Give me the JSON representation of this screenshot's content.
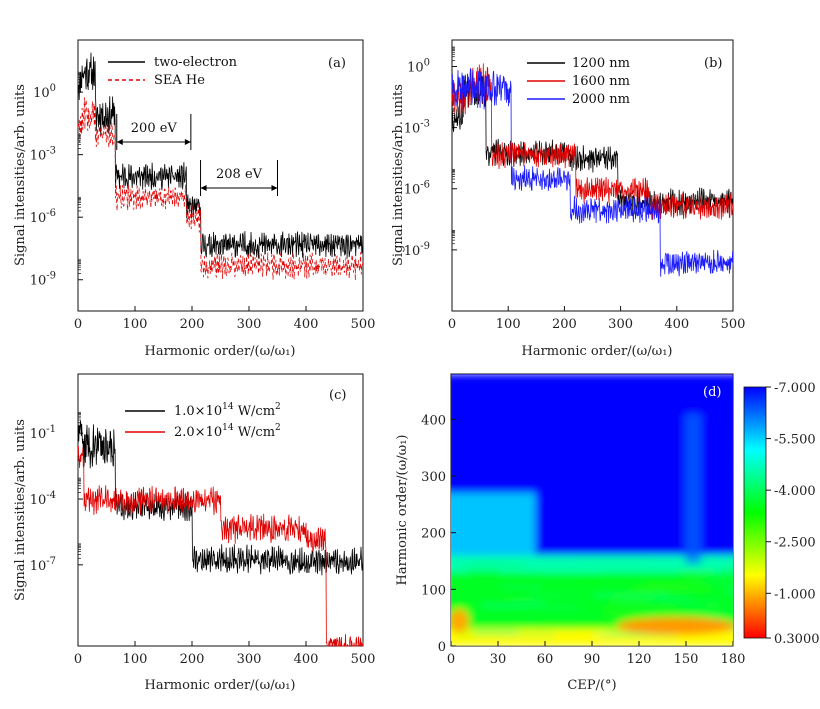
{
  "chart_data": [
    {
      "id": "a",
      "type": "line",
      "panel_label": "(a)",
      "xlabel": "Harmonic order/(ω/ω₁)",
      "ylabel": "Signal intensities/arb. units",
      "xlim": [
        0,
        500
      ],
      "ylim_log10": [
        -10.5,
        2.5
      ],
      "xticks": [
        "0",
        "100",
        "200",
        "300",
        "400",
        "500"
      ],
      "yticks": [
        {
          "label": "10",
          "exp": "0",
          "value": 0
        },
        {
          "label": "10",
          "exp": "-3",
          "value": -3
        },
        {
          "label": "10",
          "exp": "-6",
          "value": -6
        },
        {
          "label": "10",
          "exp": "-9",
          "value": -9
        }
      ],
      "series": [
        {
          "name": "two-electron",
          "color": "#000000",
          "style": "solid",
          "segments": [
            [
              0,
              5,
              0.5
            ],
            [
              5,
              30,
              1.0
            ],
            [
              30,
              65,
              -1.0
            ],
            [
              65,
              190,
              -4.0
            ],
            [
              190,
              215,
              -5.5
            ],
            [
              215,
              500,
              -7.3
            ]
          ]
        },
        {
          "name": "SEA He",
          "color": "#e00000",
          "style": "dashed",
          "segments": [
            [
              0,
              5,
              -1.5
            ],
            [
              5,
              30,
              -1.0
            ],
            [
              30,
              65,
              -2.0
            ],
            [
              65,
              190,
              -5.0
            ],
            [
              190,
              215,
              -6.0
            ],
            [
              215,
              500,
              -8.3
            ]
          ]
        }
      ],
      "annotations": [
        {
          "text": "200 eV",
          "x_from": 68,
          "x_to": 198
        },
        {
          "text": "208 eV",
          "x_from": 215,
          "x_to": 350
        }
      ]
    },
    {
      "id": "b",
      "type": "line",
      "panel_label": "(b)",
      "xlabel": "Harmonic order/(ω/ω₁)",
      "ylabel": "Signal intensities/arb. units",
      "xlim": [
        0,
        500
      ],
      "ylim_log10": [
        -12,
        1.3
      ],
      "xticks": [
        "0",
        "100",
        "200",
        "300",
        "400",
        "500"
      ],
      "yticks": [
        {
          "label": "10",
          "exp": "0",
          "value": 0
        },
        {
          "label": "10",
          "exp": "-3",
          "value": -3
        },
        {
          "label": "10",
          "exp": "-6",
          "value": -6
        },
        {
          "label": "10",
          "exp": "-9",
          "value": -9
        }
      ],
      "series": [
        {
          "name": "1200 nm",
          "color": "#000000",
          "style": "solid",
          "segments": [
            [
              0,
              20,
              -2.5
            ],
            [
              20,
              60,
              -1.0
            ],
            [
              60,
              210,
              -4.2
            ],
            [
              210,
              295,
              -4.5
            ],
            [
              295,
              500,
              -6.6
            ]
          ]
        },
        {
          "name": "1600 nm",
          "color": "#e00000",
          "style": "solid",
          "segments": [
            [
              0,
              30,
              -1.5
            ],
            [
              30,
              70,
              -0.8
            ],
            [
              70,
              220,
              -4.3
            ],
            [
              220,
              350,
              -6.0
            ],
            [
              350,
              500,
              -6.8
            ]
          ]
        },
        {
          "name": "2000 nm",
          "color": "#1a1aff",
          "style": "solid",
          "segments": [
            [
              0,
              105,
              -1.0
            ],
            [
              105,
              210,
              -5.5
            ],
            [
              210,
              370,
              -7.0
            ],
            [
              370,
              500,
              -9.6
            ]
          ]
        }
      ]
    },
    {
      "id": "c",
      "type": "line",
      "panel_label": "(c)",
      "xlabel": "Harmonic order/(ω/ω₁)",
      "ylabel": "Signal intensities/arb. units",
      "xlim": [
        0,
        500
      ],
      "ylim_log10": [
        -10.7,
        1.7
      ],
      "xticks": [
        "0",
        "100",
        "200",
        "300",
        "400",
        "500"
      ],
      "yticks": [
        {
          "label": "10",
          "exp": "-1",
          "value": -1
        },
        {
          "label": "10",
          "exp": "-4",
          "value": -4
        },
        {
          "label": "10",
          "exp": "-7",
          "value": -7
        }
      ],
      "series": [
        {
          "name": "1.0×10¹⁴ W/cm²",
          "color": "#000000",
          "style": "solid",
          "segments": [
            [
              0,
              10,
              -1.0
            ],
            [
              10,
              65,
              -1.5
            ],
            [
              65,
              200,
              -4.3
            ],
            [
              200,
              370,
              -6.7
            ],
            [
              370,
              500,
              -6.8
            ]
          ]
        },
        {
          "name": "2.0×10¹⁴ W/cm²",
          "color": "#e00000",
          "style": "solid",
          "segments": [
            [
              0,
              10,
              -2.0
            ],
            [
              10,
              250,
              -4.0
            ],
            [
              250,
              400,
              -5.3
            ],
            [
              400,
              435,
              -5.8
            ],
            [
              435,
              500,
              -10.7
            ]
          ]
        }
      ]
    },
    {
      "id": "d",
      "type": "heatmap",
      "panel_label": "(d)",
      "xlabel": "CEP/(°)",
      "ylabel": "Harmonic order/(ω/ω₁)",
      "xlim": [
        0,
        180
      ],
      "ylim": [
        0,
        480
      ],
      "xticks": [
        "0",
        "30",
        "60",
        "90",
        "120",
        "150",
        "180"
      ],
      "yticks": [
        "0",
        "100",
        "200",
        "300",
        "400"
      ],
      "colorbar": {
        "ticks": [
          "-7.000",
          "-5.500",
          "-4.000",
          "-2.500",
          "-1.000",
          "0.3000"
        ],
        "stops": [
          "#0000ff",
          "#00ffff",
          "#00ff00",
          "#ffff00",
          "#ff0000"
        ]
      },
      "regions": [
        {
          "cep_from": 0,
          "cep_to": 180,
          "order_from": 0,
          "order_to": 30,
          "value": -1.5
        },
        {
          "cep_from": 0,
          "cep_to": 180,
          "order_from": 30,
          "order_to": 130,
          "value": -3.6
        },
        {
          "cep_from": 0,
          "cep_to": 180,
          "order_from": 130,
          "order_to": 160,
          "value": -4.6
        },
        {
          "cep_from": 0,
          "cep_to": 50,
          "order_from": 160,
          "order_to": 270,
          "value": -5.6
        },
        {
          "cep_from": 0,
          "cep_to": 180,
          "order_from": 160,
          "order_to": 480,
          "value": -7.0
        }
      ]
    }
  ],
  "legend": {
    "a": [
      "two-electron",
      "SEA He"
    ],
    "b": [
      "1200 nm",
      "1600 nm",
      "2000 nm"
    ],
    "c_1": "1.0×10",
    "c_1_exp": "14",
    "c_1_unit": " W/cm",
    "c_1_unit_exp": "2",
    "c_2": "2.0×10",
    "c_2_exp": "14",
    "c_2_unit": " W/cm",
    "c_2_unit_exp": "2"
  }
}
